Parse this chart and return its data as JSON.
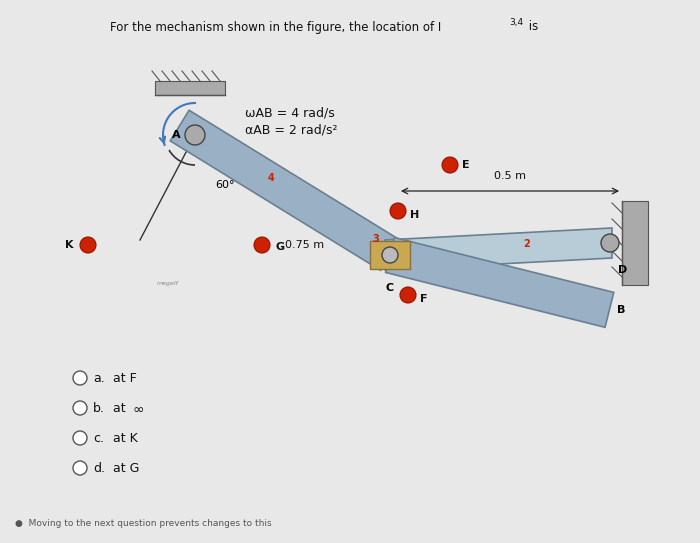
{
  "title_main": "For the mechanism shown in the figure, the location of I",
  "title_sub": "3,4",
  "title_end": " is",
  "omega_ab_text": "ωAB = 4 rad/s",
  "alpha_ab_text": "αAB = 2 rad/s²",
  "angle_text": "60°",
  "dist_05": "0.5 m",
  "dist_075": "0.75 m",
  "choices": [
    [
      "a.",
      "at F"
    ],
    [
      "b.",
      "at ∞"
    ],
    [
      "c.",
      "at K"
    ],
    [
      "d.",
      "at G"
    ]
  ],
  "bg_color": "#c8c8c8",
  "page_color": "#e8e8e8",
  "bar_color_main": "#9ab0c4",
  "bar_color_light": "#b8ccd8",
  "joint_tan": "#c8a850",
  "red_dot": "#cc2200",
  "pin_gray": "#999999",
  "wall_gray": "#aaaaaa",
  "text_dark": "#111111",
  "blue_arrow": "#4477bb",
  "link_edge": "#6a8090"
}
